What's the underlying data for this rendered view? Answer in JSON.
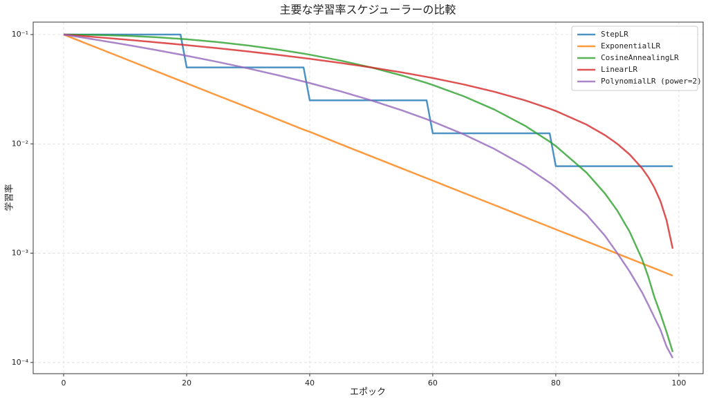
{
  "chart_data": {
    "type": "line",
    "title": "主要な学習率スケジューラーの比較",
    "x_label": "エポック",
    "y_label": "学習率",
    "x": [
      0,
      5,
      10,
      15,
      19,
      20,
      25,
      30,
      35,
      39,
      40,
      45,
      50,
      55,
      59,
      60,
      65,
      70,
      75,
      79,
      80,
      85,
      88,
      90,
      92,
      94,
      95,
      96,
      97,
      98,
      99
    ],
    "series": [
      {
        "name": "StepLR",
        "color": "#1f77b4",
        "values": [
          0.1,
          0.1,
          0.1,
          0.1,
          0.1,
          0.05,
          0.05,
          0.05,
          0.05,
          0.05,
          0.025,
          0.025,
          0.025,
          0.025,
          0.025,
          0.0125,
          0.0125,
          0.0125,
          0.0125,
          0.0125,
          0.00625,
          0.00625,
          0.00625,
          0.00625,
          0.00625,
          0.00625,
          0.00625,
          0.00625,
          0.00625,
          0.00625,
          0.00625
        ]
      },
      {
        "name": "ExponentialLR",
        "color": "#ff7f0e",
        "values": [
          0.1,
          0.0774,
          0.0599,
          0.0463,
          0.0377,
          0.0358,
          0.0277,
          0.0215,
          0.0166,
          0.0135,
          0.0129,
          0.00994,
          0.00769,
          0.00595,
          0.00485,
          0.00461,
          0.00356,
          0.00276,
          0.00213,
          0.00174,
          0.00165,
          0.00128,
          0.0011,
          0.000989,
          0.000893,
          0.000806,
          0.000766,
          0.000727,
          0.000691,
          0.000656,
          0.000623
        ]
      },
      {
        "name": "CosineAnnealingLR",
        "color": "#2ca02c",
        "values": [
          0.1,
          0.09938,
          0.09755,
          0.09455,
          0.09135,
          0.09045,
          0.08536,
          0.07939,
          0.0727,
          0.06694,
          0.06545,
          0.05782,
          0.05,
          0.04218,
          0.0361,
          0.03455,
          0.0273,
          0.02061,
          0.01464,
          0.01048,
          0.00955,
          0.00545,
          0.00351,
          0.00245,
          0.00157,
          0.000886,
          0.000616,
          0.0004,
          0.00028,
          0.00019,
          0.000125
        ]
      },
      {
        "name": "LinearLR",
        "color": "#d62728",
        "values": [
          0.1,
          0.095,
          0.09,
          0.085,
          0.081,
          0.08,
          0.075,
          0.07,
          0.065,
          0.061,
          0.06,
          0.055,
          0.05,
          0.045,
          0.041,
          0.04,
          0.035,
          0.03,
          0.025,
          0.021,
          0.02,
          0.015,
          0.012,
          0.01,
          0.008,
          0.006,
          0.005,
          0.004,
          0.003,
          0.002,
          0.0011
        ]
      },
      {
        "name": "PolynomialLR (power=2)",
        "color": "#9467bd",
        "values": [
          0.1,
          0.09025,
          0.081,
          0.07225,
          0.06561,
          0.064,
          0.05625,
          0.049,
          0.04225,
          0.03721,
          0.036,
          0.03025,
          0.025,
          0.02025,
          0.01681,
          0.016,
          0.01225,
          0.009,
          0.00625,
          0.00441,
          0.004,
          0.00225,
          0.00144,
          0.001,
          0.00068,
          0.00044,
          0.00034,
          0.00026,
          0.0002,
          0.00014,
          0.00011
        ]
      }
    ],
    "xlim": [
      -4.95,
      103.95
    ],
    "xticks": [
      0,
      20,
      40,
      60,
      80,
      100
    ],
    "ylim": [
      7.9e-05,
      0.13
    ],
    "yticks": [
      {
        "value": 0.1,
        "label": "10⁻¹"
      },
      {
        "value": 0.01,
        "label": "10⁻²"
      },
      {
        "value": 0.001,
        "label": "10⁻³"
      },
      {
        "value": 0.0001,
        "label": "10⁻⁴"
      }
    ],
    "log_y": true,
    "grid": true,
    "legend": "upper-right"
  }
}
